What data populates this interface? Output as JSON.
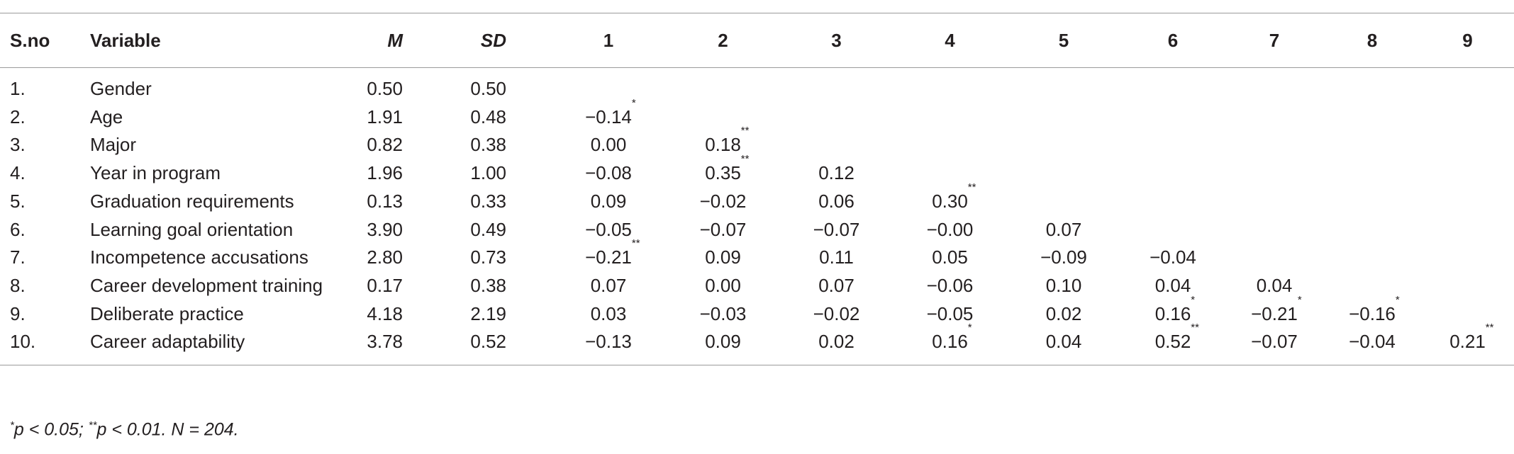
{
  "table": {
    "header": [
      "S.no",
      "Variable",
      "M",
      "SD",
      "1",
      "2",
      "3",
      "4",
      "5",
      "6",
      "7",
      "8",
      "9"
    ],
    "rows": [
      [
        "1.",
        "Gender",
        "0.50",
        "0.50"
      ],
      [
        "2.",
        "Age",
        "1.91",
        "0.48",
        {
          "value": "−0.14",
          "mark": "*"
        }
      ],
      [
        "3.",
        "Major",
        "0.82",
        "0.38",
        "0.00",
        {
          "value": "0.18",
          "mark": "**"
        }
      ],
      [
        "4.",
        "Year in program",
        "1.96",
        "1.00",
        "−0.08",
        {
          "value": "0.35",
          "mark": "**"
        },
        "0.12"
      ],
      [
        "5.",
        "Graduation requirements",
        "0.13",
        "0.33",
        "0.09",
        "−0.02",
        "0.06",
        {
          "value": "0.30",
          "mark": "**"
        }
      ],
      [
        "6.",
        "Learning goal orientation",
        "3.90",
        "0.49",
        "−0.05",
        "−0.07",
        "−0.07",
        "−0.00",
        "0.07"
      ],
      [
        "7.",
        "Incompetence accusations",
        "2.80",
        "0.73",
        {
          "value": "−0.21",
          "mark": "**"
        },
        "0.09",
        "0.11",
        "0.05",
        "−0.09",
        "−0.04"
      ],
      [
        "8.",
        "Career development training",
        "0.17",
        "0.38",
        "0.07",
        "0.00",
        "0.07",
        "−0.06",
        "0.10",
        "0.04",
        "0.04"
      ],
      [
        "9.",
        "Deliberate practice",
        "4.18",
        "2.19",
        "0.03",
        "−0.03",
        "−0.02",
        "−0.05",
        "0.02",
        {
          "value": "0.16",
          "mark": "*"
        },
        {
          "value": "−0.21",
          "mark": "*"
        },
        {
          "value": "−0.16",
          "mark": "*"
        }
      ],
      [
        "10.",
        "Career adaptability",
        "3.78",
        "0.52",
        "−0.13",
        "0.09",
        "0.02",
        {
          "value": "0.16",
          "mark": "*"
        },
        "0.04",
        {
          "value": "0.52",
          "mark": "**"
        },
        "−0.07",
        "−0.04",
        {
          "value": "0.21",
          "mark": "**"
        }
      ]
    ],
    "footnote": [
      "*",
      "p < 0.05; ",
      "**",
      "p < 0.01. N = 204."
    ]
  }
}
